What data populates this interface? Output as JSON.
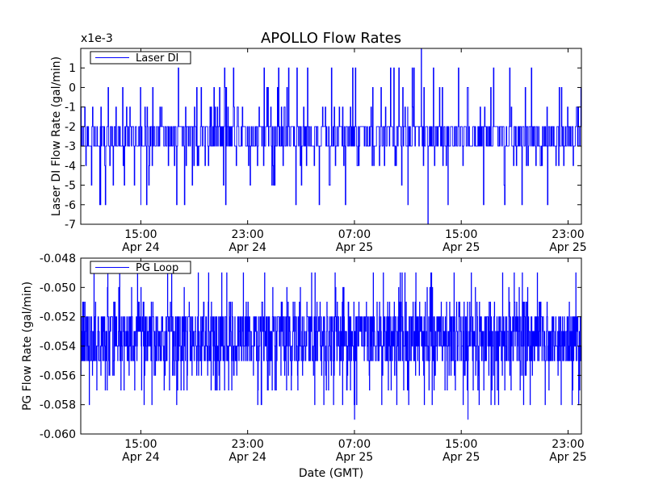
{
  "figure": {
    "title": "APOLLO Flow Rates",
    "xlabel": "Date (GMT)"
  },
  "chart_data": [
    {
      "type": "line",
      "name": "top-panel",
      "ylabel": "Laser DI Flow Rate (gal/min)",
      "offset_label": "x1e-3",
      "ylim": [
        -7,
        2
      ],
      "yticks": [
        {
          "value": 1,
          "label": "1"
        },
        {
          "value": 0,
          "label": "0"
        },
        {
          "value": -1,
          "label": "-1"
        },
        {
          "value": -2,
          "label": "-2"
        },
        {
          "value": -3,
          "label": "-3"
        },
        {
          "value": -4,
          "label": "-4"
        },
        {
          "value": -5,
          "label": "-5"
        },
        {
          "value": -6,
          "label": "-6"
        },
        {
          "value": -7,
          "label": "-7"
        }
      ],
      "xlim": [
        "2023-04-24T10:30",
        "2023-04-26T00:00"
      ],
      "xticks": [
        {
          "value": "2023-04-24T15:00",
          "time": "15:00",
          "date": "Apr 24"
        },
        {
          "value": "2023-04-24T23:00",
          "time": "23:00",
          "date": "Apr 24"
        },
        {
          "value": "2023-04-25T07:00",
          "time": "07:00",
          "date": "Apr 25"
        },
        {
          "value": "2023-04-25T15:00",
          "time": "15:00",
          "date": "Apr 25"
        },
        {
          "value": "2023-04-25T23:00",
          "time": "23:00",
          "date": "Apr 25"
        }
      ],
      "legend": {
        "label": "Laser DI",
        "placement": "upper left"
      },
      "series": [
        {
          "name": "Laser DI",
          "color": "#0000ff",
          "levels": [
            -2,
            -3
          ],
          "spike_high": [
            -1,
            -1,
            -1,
            0,
            0,
            1
          ],
          "spike_low": [
            -4,
            -4,
            -4,
            -5,
            -6
          ],
          "extremes": [
            {
              "x": "2023-04-24T12:00",
              "y": -6
            },
            {
              "x": "2023-04-24T15:00",
              "y": -6
            },
            {
              "x": "2023-04-25T12:00",
              "y": 2
            },
            {
              "x": "2023-04-25T11:00",
              "y": -6
            },
            {
              "x": "2023-04-25T12:30",
              "y": -7
            },
            {
              "x": "2023-04-25T14:00",
              "y": -6
            }
          ]
        }
      ]
    },
    {
      "type": "line",
      "name": "bottom-panel",
      "ylabel": "PG Flow Rate (gal/min)",
      "ylim": [
        -0.06,
        -0.048
      ],
      "yticks": [
        {
          "value": -0.048,
          "label": "-0.048"
        },
        {
          "value": -0.05,
          "label": "-0.050"
        },
        {
          "value": -0.052,
          "label": "-0.052"
        },
        {
          "value": -0.054,
          "label": "-0.054"
        },
        {
          "value": -0.056,
          "label": "-0.056"
        },
        {
          "value": -0.058,
          "label": "-0.058"
        },
        {
          "value": -0.06,
          "label": "-0.060"
        }
      ],
      "xlim": [
        "2023-04-24T10:30",
        "2023-04-26T00:00"
      ],
      "xticks": [
        {
          "value": "2023-04-24T15:00",
          "time": "15:00",
          "date": "Apr 24"
        },
        {
          "value": "2023-04-24T23:00",
          "time": "23:00",
          "date": "Apr 24"
        },
        {
          "value": "2023-04-25T07:00",
          "time": "07:00",
          "date": "Apr 25"
        },
        {
          "value": "2023-04-25T15:00",
          "time": "15:00",
          "date": "Apr 25"
        },
        {
          "value": "2023-04-25T23:00",
          "time": "23:00",
          "date": "Apr 25"
        }
      ],
      "legend": {
        "label": "PG Loop",
        "placement": "upper left"
      },
      "series": [
        {
          "name": "PG Loop",
          "color": "#0000ff",
          "levels": [
            -0.052,
            -0.053,
            -0.054,
            -0.055
          ],
          "spike_high": [
            -0.052,
            -0.051,
            -0.051,
            -0.05,
            -0.049
          ],
          "spike_low": [
            -0.056,
            -0.056,
            -0.057,
            -0.057,
            -0.058
          ],
          "extremes": [
            {
              "x": "2023-04-25T07:00",
              "y": -0.059
            },
            {
              "x": "2023-04-25T15:30",
              "y": -0.059
            }
          ]
        }
      ]
    }
  ]
}
